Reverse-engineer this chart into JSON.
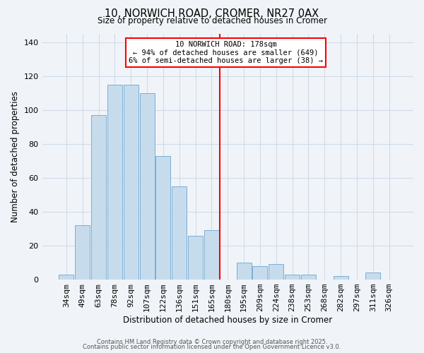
{
  "title": "10, NORWICH ROAD, CROMER, NR27 0AX",
  "subtitle": "Size of property relative to detached houses in Cromer",
  "xlabel": "Distribution of detached houses by size in Cromer",
  "ylabel": "Number of detached properties",
  "bar_labels": [
    "34sqm",
    "49sqm",
    "63sqm",
    "78sqm",
    "92sqm",
    "107sqm",
    "122sqm",
    "136sqm",
    "151sqm",
    "165sqm",
    "180sqm",
    "195sqm",
    "209sqm",
    "224sqm",
    "238sqm",
    "253sqm",
    "268sqm",
    "282sqm",
    "297sqm",
    "311sqm",
    "326sqm"
  ],
  "bar_heights": [
    3,
    32,
    97,
    115,
    115,
    110,
    73,
    55,
    26,
    29,
    0,
    10,
    8,
    9,
    3,
    3,
    0,
    2,
    0,
    4,
    0
  ],
  "bar_color": "#c6dcec",
  "bar_edge_color": "#7baed6",
  "vline_color": "red",
  "annotation_title": "10 NORWICH ROAD: 178sqm",
  "annotation_line1": "← 94% of detached houses are smaller (649)",
  "annotation_line2": "6% of semi-detached houses are larger (38) →",
  "ylim": [
    0,
    145
  ],
  "yticks": [
    0,
    20,
    40,
    60,
    80,
    100,
    120,
    140
  ],
  "footer1": "Contains HM Land Registry data © Crown copyright and database right 2025.",
  "footer2": "Contains public sector information licensed under the Open Government Licence v3.0.",
  "background_color": "#f0f4f8",
  "grid_color": "#d0dce8"
}
